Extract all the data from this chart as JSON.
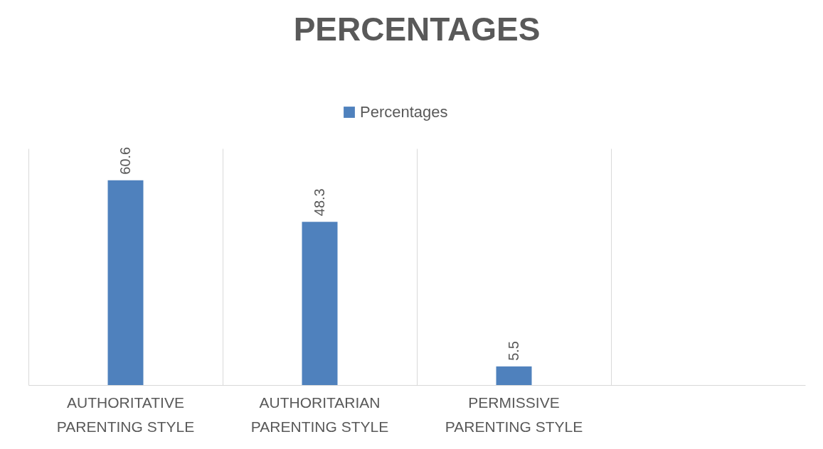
{
  "chart_data": {
    "type": "bar",
    "title": "PERCENTAGES",
    "categories": [
      "AUTHORITATIVE PARENTING STYLE",
      "AUTHORITARIAN PARENTING STYLE",
      "PERMISSIVE PARENTING STYLE",
      null
    ],
    "series": [
      {
        "name": "Percentages",
        "color": "#4f81bd",
        "values": [
          60.6,
          48.3,
          5.5,
          null
        ]
      }
    ],
    "data_labels": true,
    "grid": "x",
    "legend": "top"
  }
}
